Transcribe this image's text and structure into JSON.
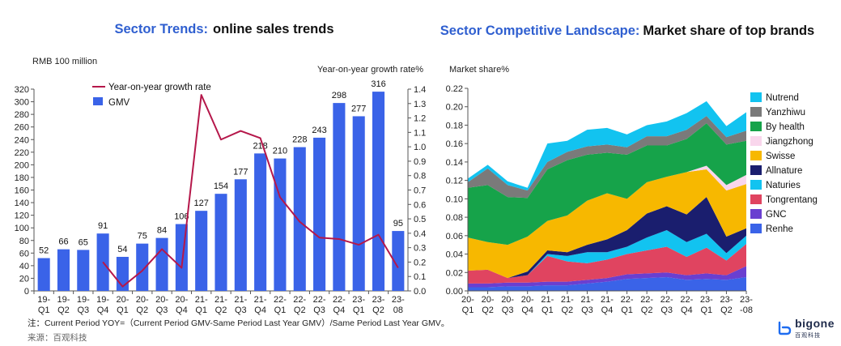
{
  "left_title": {
    "accent": "Sector Trends:",
    "main": "online sales trends"
  },
  "right_title": {
    "accent": "Sector Competitive Landscape:",
    "main": "Market share of top brands"
  },
  "note": "注：Current Period YOY=（Current Period GMV-Same Period Last Year GMV）/Same Period Last Year GMV。",
  "source": "来源：百观科技",
  "logo": {
    "name": "bigone",
    "sub": "百观科技"
  },
  "colors": {
    "gmv_bar": "#3a63e8",
    "yoy_line": "#b5174a",
    "brands": {
      "Renhe": "#3a63e8",
      "GNC": "#6a3fd0",
      "Tongrentang": "#e04460",
      "Naturies": "#12c3f0",
      "Allnature": "#1a1e6e",
      "Swisse": "#f7b800",
      "Jiangzhong": "#f9d6ec",
      "By health": "#16a34a",
      "Yanzhiwu": "#7a7a7a",
      "Nutrend": "#12c3f0"
    }
  },
  "chart_data": [
    {
      "type": "bar",
      "ylabel_left": "RMB 100 million",
      "ylabel_right": "Year-on-year growth rate%",
      "categories": [
        "19-Q1",
        "19-Q2",
        "19-Q3",
        "19-Q4",
        "20-Q1",
        "20-Q2",
        "20-Q3",
        "20-Q4",
        "21-Q1",
        "21-Q2",
        "21-Q3",
        "21-Q4",
        "22-Q1",
        "22-Q2",
        "22-Q3",
        "22-Q4",
        "23-Q1",
        "23-Q2",
        "23-08"
      ],
      "ylim_left": [
        0,
        320
      ],
      "yticks_left": [
        0,
        20,
        40,
        60,
        80,
        100,
        120,
        140,
        160,
        180,
        200,
        220,
        240,
        260,
        280,
        300,
        320
      ],
      "ylim_right": [
        0,
        1.4
      ],
      "yticks_right": [
        "0.0",
        "0.1",
        "0.2",
        "0.3",
        "0.4",
        "0.5",
        "0.6",
        "0.7",
        "0.8",
        "0.9",
        "1.0",
        "1.1",
        "1.2",
        "1.3",
        "1.4"
      ],
      "legend": "top-left",
      "series": [
        {
          "name": "GMV",
          "type": "bar",
          "values": [
            52,
            66,
            65,
            91,
            54,
            75,
            84,
            106,
            127,
            154,
            177,
            218,
            210,
            228,
            243,
            298,
            277,
            316,
            95
          ]
        },
        {
          "name": "Year-on-year growth rate",
          "type": "line",
          "start_index": 3,
          "values": [
            null,
            null,
            null,
            0.2,
            0.03,
            0.14,
            0.29,
            0.16,
            1.36,
            1.05,
            1.11,
            1.06,
            0.65,
            0.48,
            0.37,
            0.36,
            0.32,
            0.39,
            0.16
          ]
        }
      ]
    },
    {
      "type": "area",
      "ylabel": "Market share%",
      "categories": [
        "20-Q1",
        "20-Q2",
        "20-Q3",
        "20-Q4",
        "21-Q1",
        "21-Q2",
        "21-Q3",
        "21-Q4",
        "22-Q1",
        "22-Q2",
        "22-Q3",
        "22-Q4",
        "23-Q1",
        "23-Q2",
        "23-08"
      ],
      "tick_labels": [
        [
          "20-",
          "Q1"
        ],
        [
          "20-",
          "Q2"
        ],
        [
          "20-",
          "Q3"
        ],
        [
          "20-",
          "Q4"
        ],
        [
          "21-",
          "Q1"
        ],
        [
          "21-",
          "Q2"
        ],
        [
          "21-",
          "Q3"
        ],
        [
          "21-",
          "Q4"
        ],
        [
          "22-",
          "Q1"
        ],
        [
          "22-",
          "Q2"
        ],
        [
          "22-",
          "Q3"
        ],
        [
          "22-",
          "Q4"
        ],
        [
          "23-",
          "Q1"
        ],
        [
          "23-",
          "Q2"
        ],
        [
          "23-",
          "-08"
        ]
      ],
      "ylim": [
        0,
        0.22
      ],
      "yticks": [
        "0.00",
        "0.02",
        "0.04",
        "0.06",
        "0.08",
        "0.10",
        "0.12",
        "0.14",
        "0.16",
        "0.18",
        "0.20",
        "0.22"
      ],
      "legend": "right",
      "legend_order": [
        "Nutrend",
        "Yanzhiwu",
        "By health",
        "Jiangzhong",
        "Swisse",
        "Allnature",
        "Naturies",
        "Tongrentang",
        "GNC",
        "Renhe"
      ],
      "series": [
        {
          "name": "Renhe",
          "values": [
            0.004,
            0.004,
            0.005,
            0.005,
            0.006,
            0.006,
            0.008,
            0.01,
            0.013,
            0.014,
            0.015,
            0.012,
            0.013,
            0.012,
            0.015
          ]
        },
        {
          "name": "GNC",
          "values": [
            0.004,
            0.004,
            0.004,
            0.004,
            0.004,
            0.004,
            0.004,
            0.004,
            0.005,
            0.005,
            0.005,
            0.005,
            0.006,
            0.005,
            0.012
          ]
        },
        {
          "name": "Tongrentang",
          "values": [
            0.014,
            0.015,
            0.005,
            0.008,
            0.028,
            0.022,
            0.018,
            0.02,
            0.022,
            0.025,
            0.028,
            0.02,
            0.028,
            0.016,
            0.024
          ]
        },
        {
          "name": "Naturies",
          "values": [
            0.0,
            0.0,
            0.0,
            0.0,
            0.002,
            0.006,
            0.012,
            0.008,
            0.008,
            0.014,
            0.018,
            0.016,
            0.015,
            0.008,
            0.009
          ]
        },
        {
          "name": "Allnature",
          "values": [
            0.0,
            0.0,
            0.0,
            0.004,
            0.004,
            0.004,
            0.008,
            0.014,
            0.018,
            0.026,
            0.026,
            0.03,
            0.04,
            0.018,
            0.008
          ]
        },
        {
          "name": "Swisse",
          "values": [
            0.036,
            0.03,
            0.036,
            0.038,
            0.032,
            0.04,
            0.048,
            0.05,
            0.034,
            0.034,
            0.032,
            0.046,
            0.03,
            0.05,
            0.048
          ]
        },
        {
          "name": "Jiangzhong",
          "values": [
            0.0,
            0.0,
            0.0,
            0.0,
            0.0,
            0.0,
            0.0,
            0.0,
            0.0,
            0.0,
            0.0,
            0.0,
            0.004,
            0.006,
            0.01
          ]
        },
        {
          "name": "By health",
          "values": [
            0.054,
            0.062,
            0.052,
            0.042,
            0.056,
            0.06,
            0.05,
            0.044,
            0.048,
            0.04,
            0.034,
            0.036,
            0.046,
            0.044,
            0.037
          ]
        },
        {
          "name": "Yanzhiwu",
          "values": [
            0.006,
            0.018,
            0.013,
            0.008,
            0.008,
            0.009,
            0.009,
            0.009,
            0.008,
            0.01,
            0.01,
            0.01,
            0.008,
            0.008,
            0.011
          ]
        },
        {
          "name": "Nutrend",
          "values": [
            0.004,
            0.004,
            0.004,
            0.003,
            0.02,
            0.012,
            0.018,
            0.018,
            0.014,
            0.012,
            0.016,
            0.018,
            0.016,
            0.012,
            0.02
          ]
        }
      ]
    }
  ]
}
